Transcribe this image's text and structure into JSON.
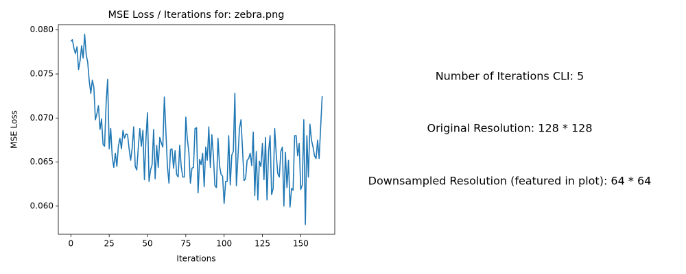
{
  "chart_data": {
    "type": "line",
    "title": "MSE Loss / Iterations for: zebra.png",
    "xlabel": "Iterations",
    "ylabel": "MSE Loss",
    "annotations": [
      "Number of Iterations CLI: 5",
      "Original Resolution: 128 * 128",
      "Downsampled Resolution (featured in plot): 64 * 64"
    ],
    "grid": false,
    "xlim": [
      -8.2,
      172.2
    ],
    "ylim": [
      0.0568,
      0.0806
    ],
    "xticks": [
      0,
      25,
      50,
      75,
      100,
      125,
      150
    ],
    "yticks": [
      {
        "value": 0.06,
        "label": "0.060"
      },
      0.065,
      {
        "value": 0.07,
        "label": "0.070"
      },
      0.075,
      {
        "value": 0.08,
        "label": "0.080"
      }
    ],
    "x": [
      0,
      1,
      2,
      3,
      4,
      5,
      6,
      7,
      8,
      9,
      10,
      11,
      12,
      13,
      14,
      15,
      16,
      17,
      18,
      19,
      20,
      21,
      22,
      23,
      24,
      25,
      26,
      27,
      28,
      29,
      30,
      31,
      32,
      33,
      34,
      35,
      36,
      37,
      38,
      39,
      40,
      41,
      42,
      43,
      44,
      45,
      46,
      47,
      48,
      49,
      50,
      51,
      52,
      53,
      54,
      55,
      56,
      57,
      58,
      59,
      60,
      61,
      62,
      63,
      64,
      65,
      66,
      67,
      68,
      69,
      70,
      71,
      72,
      73,
      74,
      75,
      76,
      77,
      78,
      79,
      80,
      81,
      82,
      83,
      84,
      85,
      86,
      87,
      88,
      89,
      90,
      91,
      92,
      93,
      94,
      95,
      96,
      97,
      98,
      99,
      100,
      101,
      102,
      103,
      104,
      105,
      106,
      107,
      108,
      109,
      110,
      111,
      112,
      113,
      114,
      115,
      116,
      117,
      118,
      119,
      120,
      121,
      122,
      123,
      124,
      125,
      126,
      127,
      128,
      129,
      130,
      131,
      132,
      133,
      134,
      135,
      136,
      137,
      138,
      139,
      140,
      141,
      142,
      143,
      144,
      145,
      146,
      147,
      148,
      149,
      150,
      151,
      152,
      153,
      154,
      155,
      156,
      157,
      158,
      159,
      160,
      161,
      162,
      163,
      164
    ],
    "series": [
      {
        "color": "#1f77b4",
        "values": [
          0.0787,
          0.0789,
          0.0779,
          0.0773,
          0.0781,
          0.0755,
          0.0765,
          0.0782,
          0.0768,
          0.0795,
          0.0772,
          0.0763,
          0.0742,
          0.0728,
          0.0743,
          0.0735,
          0.0698,
          0.0705,
          0.0714,
          0.0687,
          0.0699,
          0.067,
          0.0668,
          0.0717,
          0.0744,
          0.0665,
          0.0688,
          0.0656,
          0.0644,
          0.066,
          0.0645,
          0.0668,
          0.0677,
          0.0665,
          0.0686,
          0.0677,
          0.0682,
          0.0681,
          0.0665,
          0.0652,
          0.0666,
          0.069,
          0.0645,
          0.0641,
          0.0667,
          0.0688,
          0.0668,
          0.0686,
          0.063,
          0.0677,
          0.0706,
          0.0628,
          0.0641,
          0.0647,
          0.0687,
          0.0631,
          0.0669,
          0.0644,
          0.0678,
          0.0672,
          0.0667,
          0.0724,
          0.0685,
          0.0645,
          0.0626,
          0.0664,
          0.0665,
          0.0643,
          0.0663,
          0.0636,
          0.0633,
          0.0669,
          0.0645,
          0.0633,
          0.0633,
          0.0701,
          0.0676,
          0.0661,
          0.0626,
          0.0643,
          0.0644,
          0.0688,
          0.0689,
          0.0615,
          0.0653,
          0.0647,
          0.066,
          0.0622,
          0.0667,
          0.0652,
          0.069,
          0.0644,
          0.0681,
          0.0657,
          0.0623,
          0.0621,
          0.0677,
          0.0646,
          0.0636,
          0.0634,
          0.0603,
          0.0628,
          0.0628,
          0.068,
          0.0624,
          0.0658,
          0.0662,
          0.0728,
          0.0623,
          0.0655,
          0.0688,
          0.0698,
          0.0665,
          0.0629,
          0.0631,
          0.0652,
          0.0654,
          0.066,
          0.0646,
          0.0684,
          0.0612,
          0.0662,
          0.0607,
          0.0651,
          0.0645,
          0.0671,
          0.063,
          0.0678,
          0.0607,
          0.0662,
          0.068,
          0.0613,
          0.062,
          0.0688,
          0.0659,
          0.0637,
          0.0633,
          0.0662,
          0.0667,
          0.06,
          0.0661,
          0.0621,
          0.0652,
          0.0599,
          0.062,
          0.0618,
          0.068,
          0.068,
          0.0657,
          0.0671,
          0.0619,
          0.0624,
          0.0698,
          0.0579,
          0.068,
          0.0633,
          0.0693,
          0.0675,
          0.0667,
          0.0657,
          0.0654,
          0.0675,
          0.0654,
          0.069,
          0.0725
        ]
      }
    ]
  }
}
